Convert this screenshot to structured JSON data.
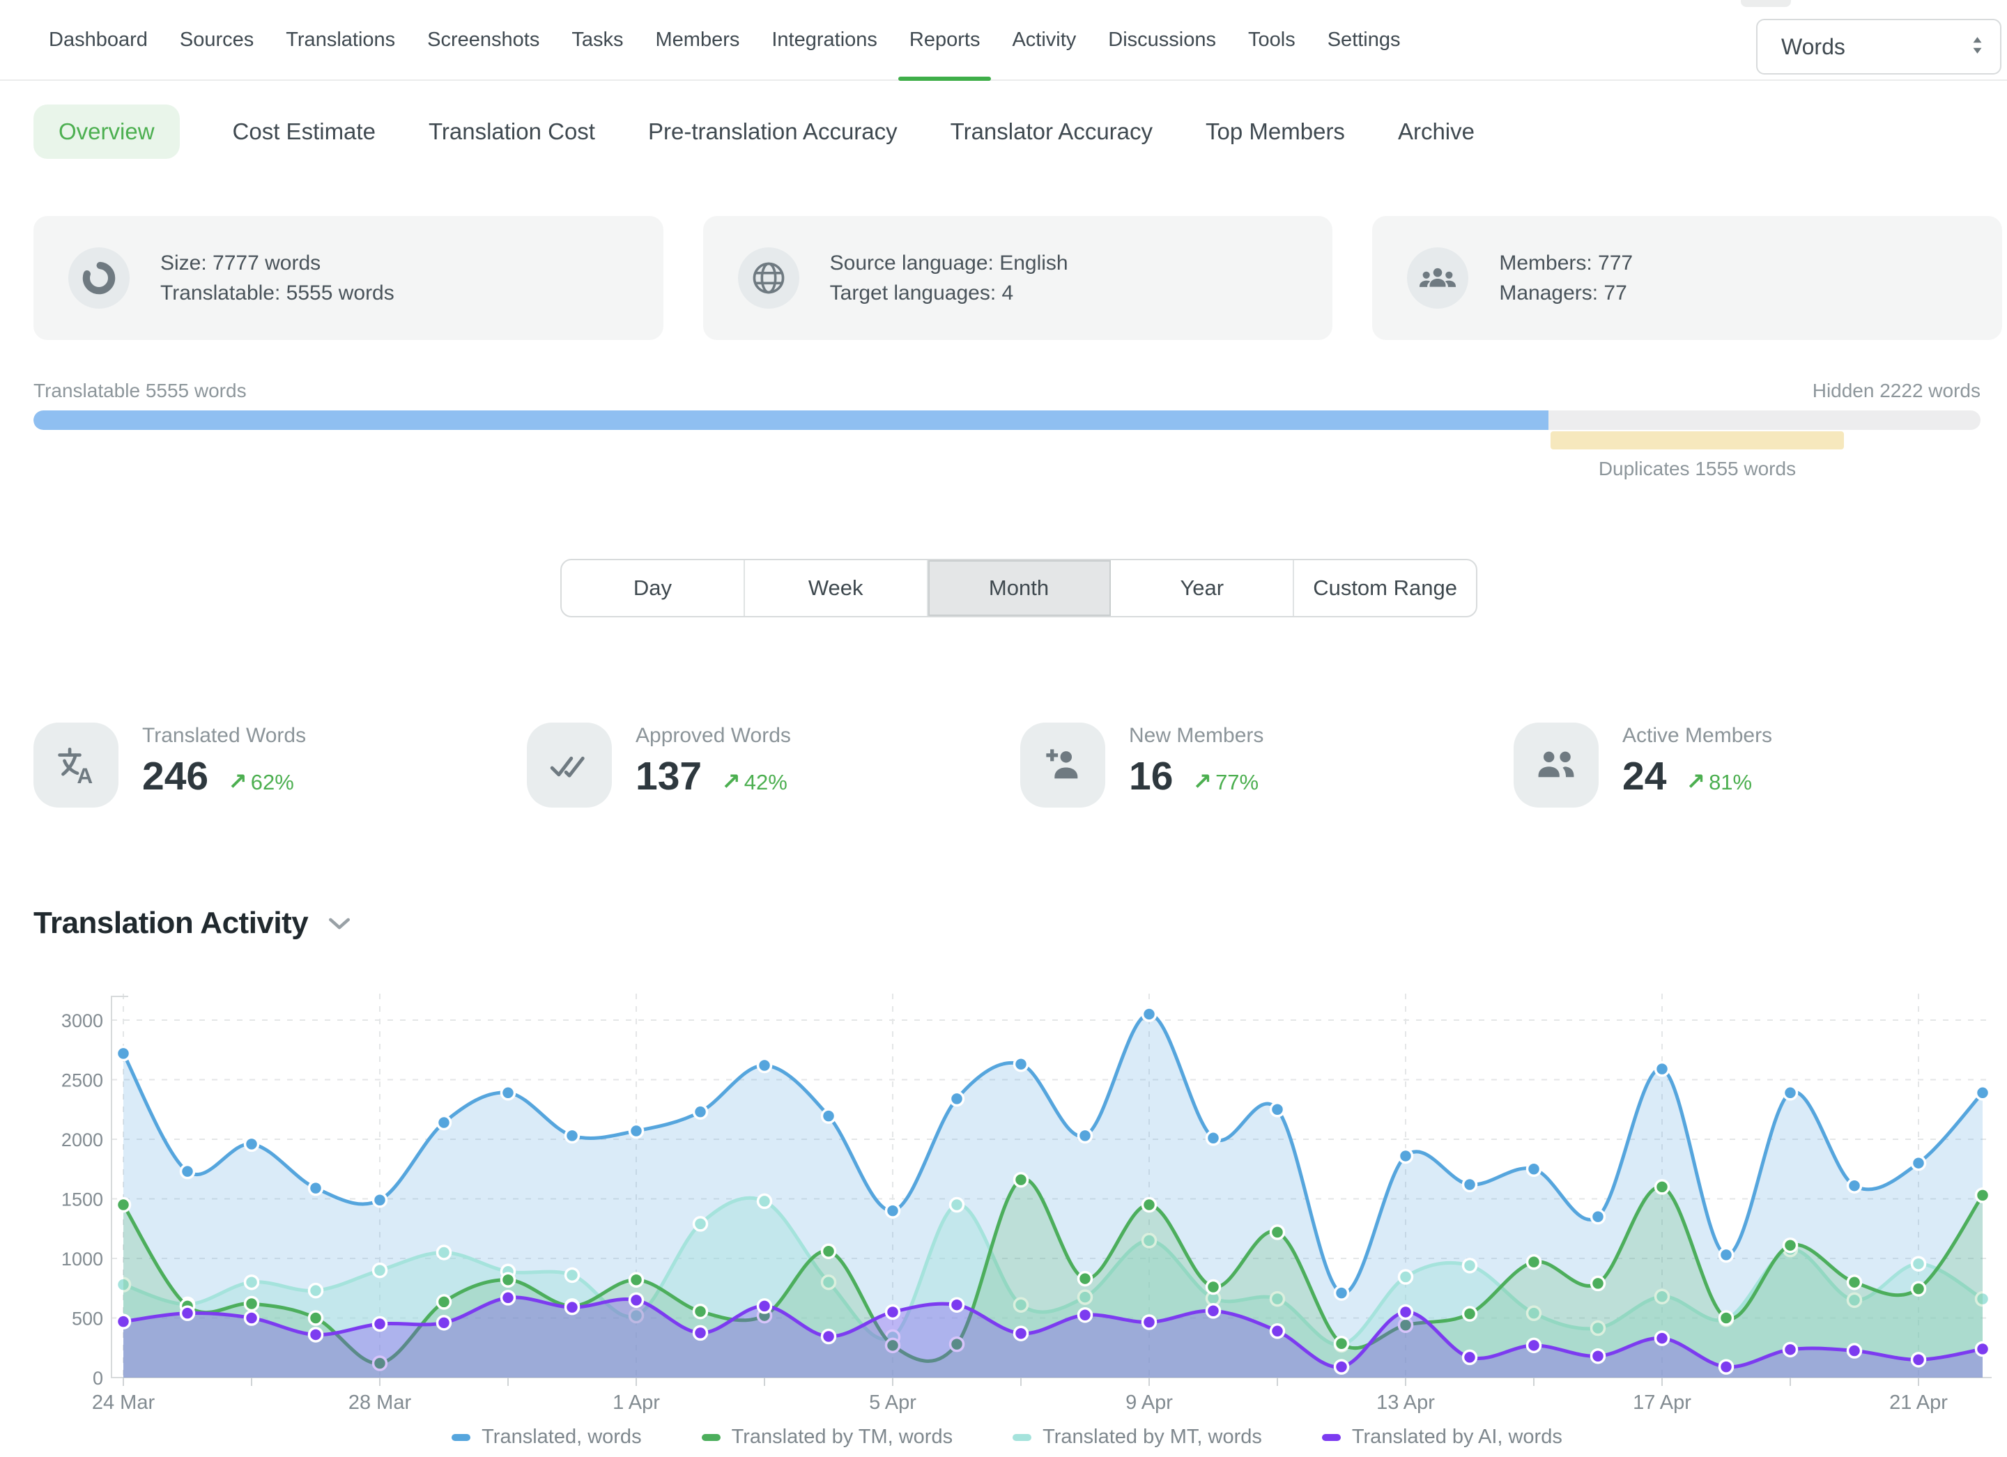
{
  "nav": {
    "items": [
      "Dashboard",
      "Sources",
      "Translations",
      "Screenshots",
      "Tasks",
      "Members",
      "Integrations",
      "Reports",
      "Activity",
      "Discussions",
      "Tools",
      "Settings"
    ],
    "active": "Reports",
    "active_underline_color": "#3fae49"
  },
  "subnav": {
    "items": [
      "Overview",
      "Cost Estimate",
      "Translation Cost",
      "Pre-translation Accuracy",
      "Translator Accuracy",
      "Top Members",
      "Archive"
    ],
    "active": "Overview",
    "active_color": "#4caf50",
    "unit_select": {
      "value": "Words"
    }
  },
  "summary_cards": [
    {
      "icon": "donut-icon",
      "lines": [
        "Size: 7777 words",
        "Translatable: 5555 words"
      ]
    },
    {
      "icon": "globe-icon",
      "lines": [
        "Source language: English",
        "Target languages: 4"
      ]
    },
    {
      "icon": "members-icon",
      "lines": [
        "Members: 777",
        "Managers: 77"
      ]
    }
  ],
  "progress": {
    "left_label": "Translatable 5555 words",
    "right_label": "Hidden 2222 words",
    "duplicates_label": "Duplicates 1555 words",
    "translatable_pct": 77.8,
    "duplicates_left_pct": 77.9,
    "duplicates_width_pct": 15.1,
    "bar_color": "#8fbff1",
    "track_color": "#ededee",
    "duplicates_color": "#f6e8bd"
  },
  "range_tabs": {
    "options": [
      "Day",
      "Week",
      "Month",
      "Year",
      "Custom Range"
    ],
    "active": "Month"
  },
  "stats": {
    "trend_arrow": "↗",
    "items": [
      {
        "icon": "translate-icon",
        "label": "Translated Words",
        "value": "246",
        "delta": "62%"
      },
      {
        "icon": "double-check-icon",
        "label": "Approved Words",
        "value": "137",
        "delta": "42%"
      },
      {
        "icon": "person-add-icon",
        "label": "New Members",
        "value": "16",
        "delta": "77%"
      },
      {
        "icon": "people-icon",
        "label": "Active Members",
        "value": "24",
        "delta": "81%"
      }
    ],
    "delta_color": "#4caf50"
  },
  "chart_section": {
    "title": "Translation Activity"
  },
  "chart_data": {
    "type": "area",
    "title": "Translation Activity",
    "xlabel": "",
    "ylabel": "",
    "ylim": [
      0,
      3000
    ],
    "yticks": [
      0,
      500,
      1000,
      1500,
      2000,
      2500,
      3000
    ],
    "grid": true,
    "legend_position": "bottom",
    "x": [
      "24 Mar",
      "25 Mar",
      "26 Mar",
      "27 Mar",
      "28 Mar",
      "29 Mar",
      "30 Mar",
      "31 Mar",
      "1 Apr",
      "2 Apr",
      "3 Apr",
      "4 Apr",
      "5 Apr",
      "6 Apr",
      "7 Apr",
      "8 Apr",
      "9 Apr",
      "10 Apr",
      "11 Apr",
      "12 Apr",
      "13 Apr",
      "14 Apr",
      "15 Apr",
      "16 Apr",
      "17 Apr",
      "18 Apr",
      "19 Apr",
      "20 Apr",
      "21 Apr",
      "22 Apr"
    ],
    "x_tick_labels": [
      "24 Mar",
      "28 Mar",
      "1 Apr",
      "5 Apr",
      "9 Apr",
      "13 Apr",
      "17 Apr",
      "21 Apr"
    ],
    "x_tick_every": 4,
    "series": [
      {
        "name": "Translated, words",
        "color": "#55a5dd",
        "values": [
          2720,
          1730,
          1960,
          1590,
          1490,
          2140,
          2390,
          2030,
          2070,
          2230,
          2620,
          2195,
          1400,
          2340,
          2630,
          2030,
          3050,
          2010,
          2250,
          710,
          1860,
          1620,
          1750,
          1350,
          2590,
          1030,
          2390,
          1610,
          1800,
          2390
        ]
      },
      {
        "name": "Translated by TM, words",
        "color": "#4cae5c",
        "values": [
          1450,
          600,
          620,
          500,
          120,
          635,
          820,
          600,
          820,
          555,
          520,
          1060,
          270,
          280,
          1660,
          830,
          1450,
          760,
          1220,
          285,
          440,
          535,
          970,
          790,
          1600,
          500,
          1110,
          800,
          745,
          1530
        ]
      },
      {
        "name": "Translated by MT, words",
        "color": "#a5e3dc",
        "values": [
          780,
          615,
          800,
          730,
          900,
          1050,
          890,
          860,
          520,
          1290,
          1480,
          800,
          340,
          1450,
          610,
          675,
          1150,
          665,
          660,
          275,
          845,
          940,
          540,
          415,
          680,
          490,
          1075,
          650,
          955,
          660
        ]
      },
      {
        "name": "Translated by AI, words",
        "color": "#7c3bf0",
        "values": [
          470,
          540,
          500,
          360,
          450,
          460,
          670,
          590,
          650,
          375,
          600,
          345,
          550,
          610,
          370,
          525,
          465,
          560,
          390,
          90,
          550,
          170,
          270,
          180,
          330,
          90,
          235,
          225,
          150,
          240
        ]
      }
    ]
  }
}
